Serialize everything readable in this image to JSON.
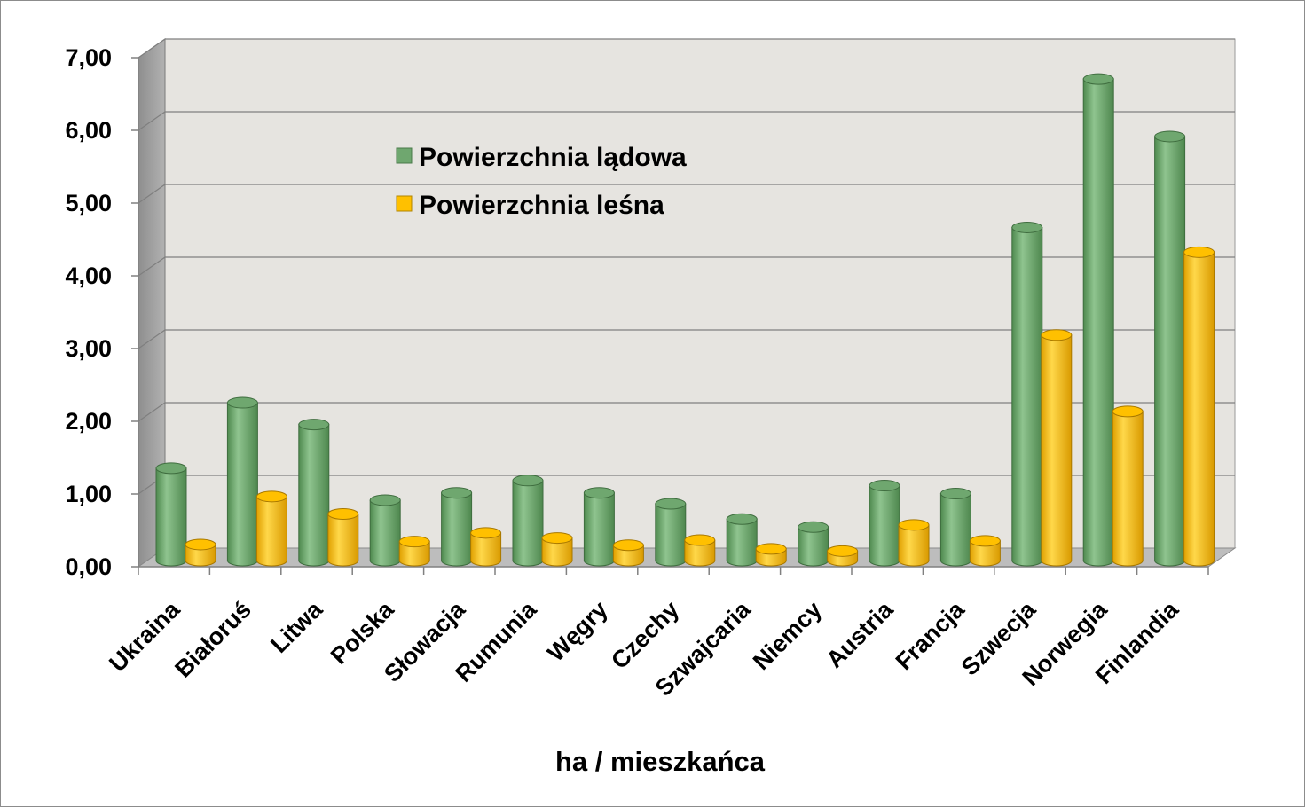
{
  "chart_data": {
    "type": "bar",
    "title": "",
    "xlabel": "ha / mieszkańca",
    "ylabel": "",
    "ylim": [
      0,
      7
    ],
    "yticks": [
      "0,00",
      "1,00",
      "2,00",
      "3,00",
      "4,00",
      "5,00",
      "6,00",
      "7,00"
    ],
    "grid": true,
    "legend_position": "top-left, inside plot",
    "categories": [
      "Ukraina",
      "Białoruś",
      "Litwa",
      "Polska",
      "Słowacja",
      "Rumunia",
      "Węgry",
      "Czechy",
      "Szwajcaria",
      "Niemcy",
      "Austria",
      "Francja",
      "Szwecja",
      "Norwegia",
      "Finlandia"
    ],
    "series": [
      {
        "name": "Powierzchnia lądowa",
        "color": "#6fa76f",
        "values": [
          1.27,
          2.17,
          1.87,
          0.83,
          0.93,
          1.1,
          0.93,
          0.78,
          0.57,
          0.46,
          1.03,
          0.92,
          4.58,
          6.62,
          5.83
        ]
      },
      {
        "name": "Powierzchnia leśna",
        "color": "#ffc000",
        "values": [
          0.22,
          0.88,
          0.64,
          0.26,
          0.38,
          0.31,
          0.21,
          0.28,
          0.16,
          0.13,
          0.49,
          0.27,
          3.1,
          2.05,
          4.24
        ]
      }
    ]
  }
}
